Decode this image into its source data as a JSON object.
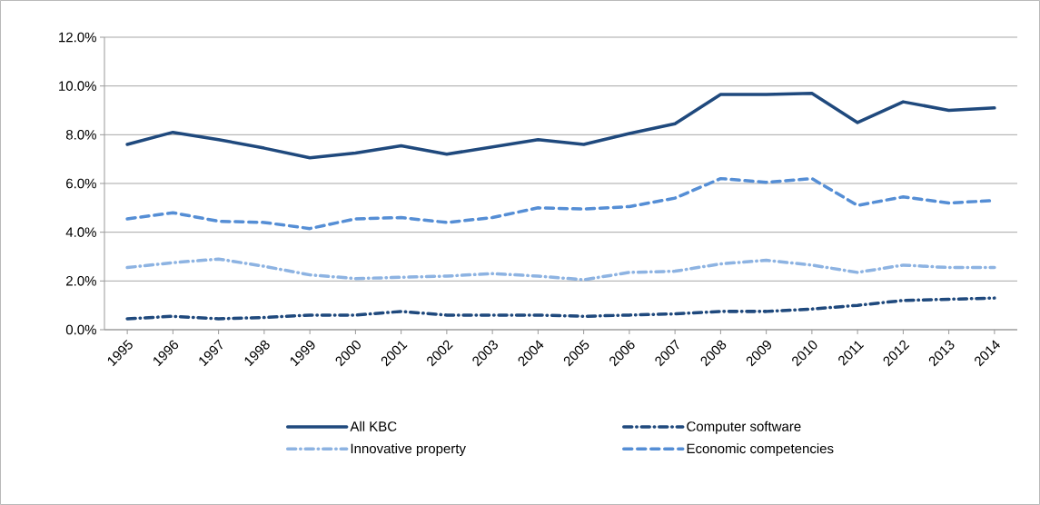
{
  "chart_data": {
    "type": "line",
    "categories": [
      "1995",
      "1996",
      "1997",
      "1998",
      "1999",
      "2000",
      "2001",
      "2002",
      "2003",
      "2004",
      "2005",
      "2006",
      "2007",
      "2008",
      "2009",
      "2010",
      "2011",
      "2012",
      "2013",
      "2014"
    ],
    "series": [
      {
        "name": "All KBC",
        "color": "#1f497d",
        "line_style": "solid",
        "values": [
          7.6,
          8.1,
          7.8,
          7.45,
          7.05,
          7.25,
          7.55,
          7.2,
          7.5,
          7.8,
          7.6,
          8.05,
          8.45,
          9.65,
          9.65,
          9.7,
          8.5,
          9.35,
          9.0,
          9.1
        ]
      },
      {
        "name": "Computer software",
        "color": "#1f497d",
        "line_style": "dashdot",
        "values": [
          0.45,
          0.55,
          0.45,
          0.5,
          0.6,
          0.6,
          0.75,
          0.6,
          0.6,
          0.6,
          0.55,
          0.6,
          0.65,
          0.75,
          0.75,
          0.85,
          1.0,
          1.2,
          1.25,
          1.3
        ]
      },
      {
        "name": "Innovative property",
        "color": "#8db3e2",
        "line_style": "dashdot",
        "values": [
          2.55,
          2.75,
          2.9,
          2.6,
          2.25,
          2.1,
          2.15,
          2.2,
          2.3,
          2.2,
          2.05,
          2.35,
          2.4,
          2.7,
          2.85,
          2.65,
          2.35,
          2.65,
          2.55,
          2.55
        ]
      },
      {
        "name": "Economic competencies",
        "color": "#558ed5",
        "line_style": "dashed",
        "values": [
          4.55,
          4.8,
          4.45,
          4.4,
          4.15,
          4.55,
          4.6,
          4.4,
          4.6,
          5.0,
          4.95,
          5.05,
          5.4,
          6.2,
          6.05,
          6.2,
          5.1,
          5.45,
          5.2,
          5.3
        ]
      }
    ],
    "ylim": [
      0,
      12
    ],
    "yticks": [
      {
        "value": 0,
        "label": "0.0%"
      },
      {
        "value": 2,
        "label": "2.0%"
      },
      {
        "value": 4,
        "label": "4.0%"
      },
      {
        "value": 6,
        "label": "6.0%"
      },
      {
        "value": 8,
        "label": "8.0%"
      },
      {
        "value": 10,
        "label": "10.0%"
      },
      {
        "value": 12,
        "label": "12.0%"
      }
    ],
    "grid": "y",
    "legend": "bottom"
  }
}
